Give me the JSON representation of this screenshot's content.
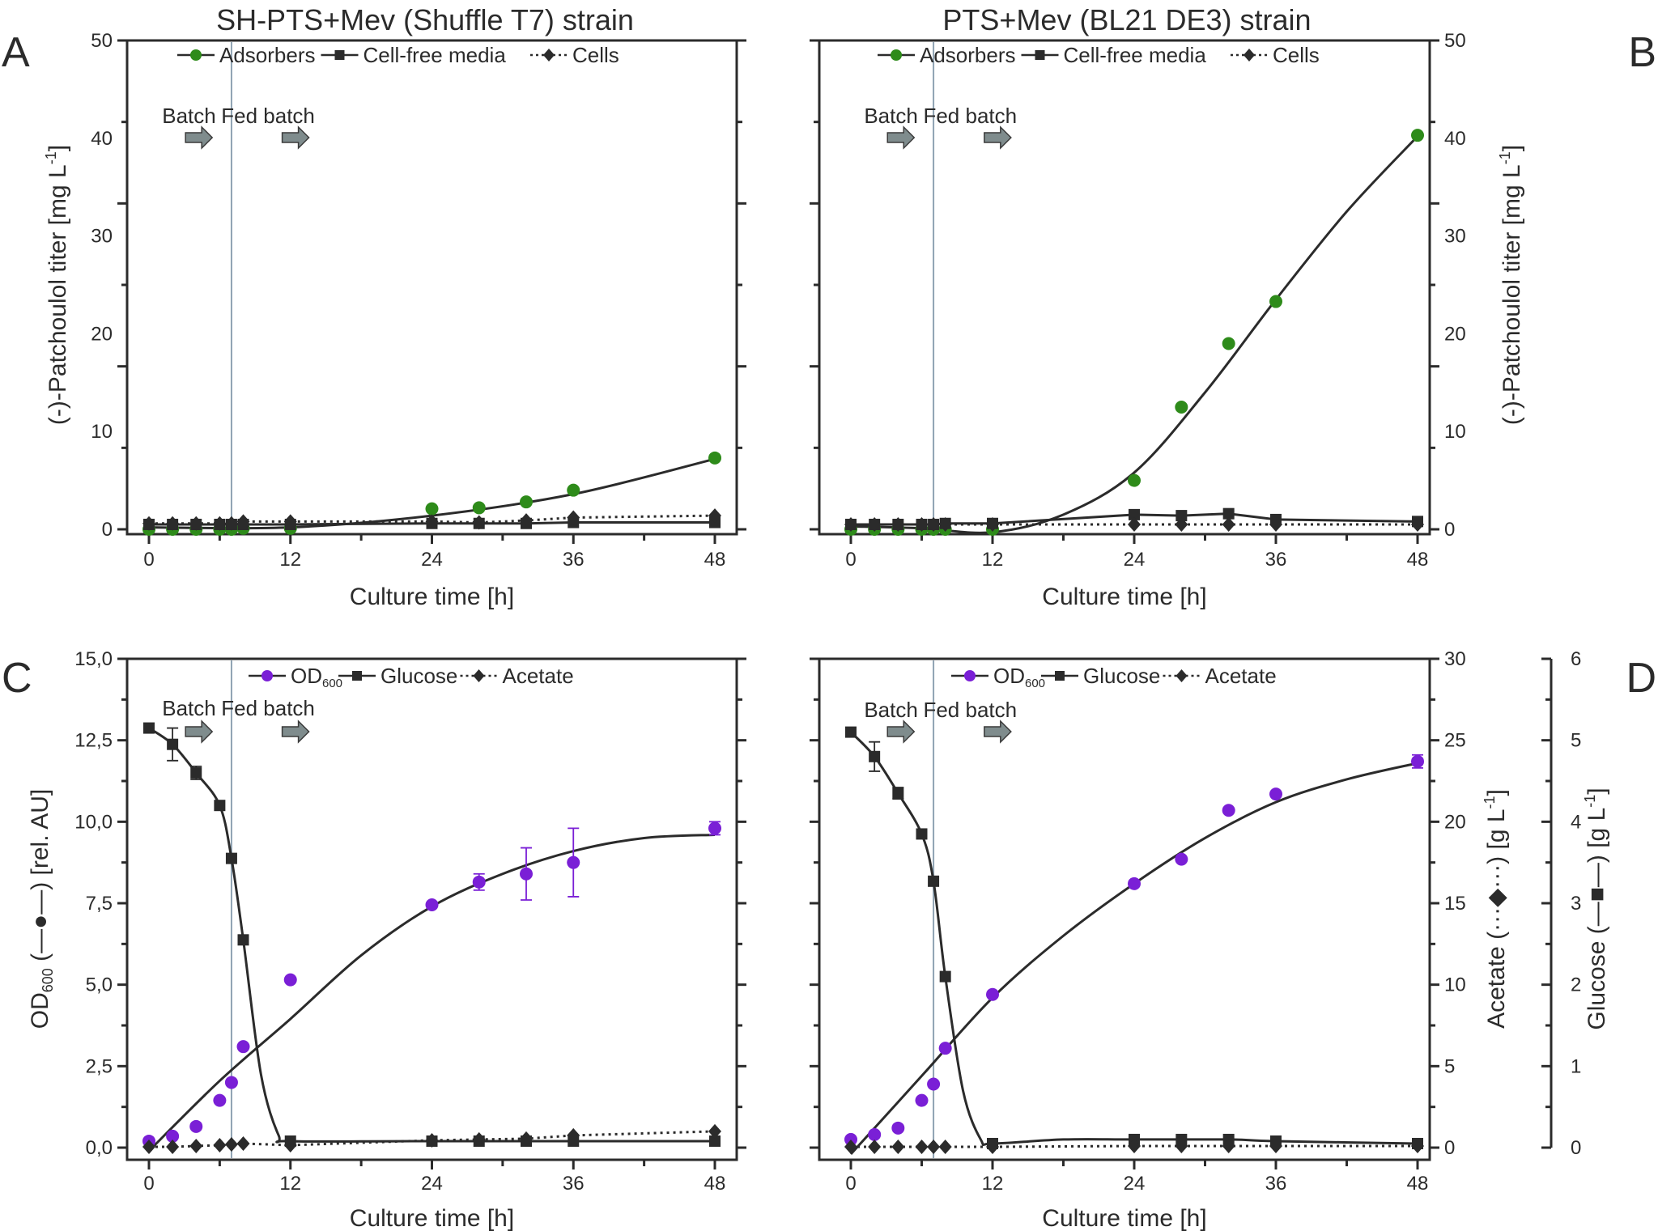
{
  "colors": {
    "adsorbers": "#2e8b1a",
    "od": "#7a1fd6",
    "black": "#2b2b2b",
    "phase_line": "#8fa3b3",
    "arrow": "#7f8c8d"
  },
  "chart_data": [
    {
      "type": "scatter",
      "panel_label": "A",
      "title": "SH-PTS+Mev (Shuffle T7) strain",
      "xlabel": "Culture time [h]",
      "ylabel": {
        "main": "(-)-Patchoulol titer [mg L",
        "sup": "-1",
        "end": "]"
      },
      "xlim": [
        0,
        48
      ],
      "ylim": [
        0,
        50
      ],
      "xticks": [
        "0",
        "12",
        "24",
        "36",
        "48"
      ],
      "yticks": [
        "0",
        "10",
        "20",
        "30",
        "40",
        "50"
      ],
      "phases": {
        "batch": "Batch",
        "fed_batch": "Fed batch",
        "switch_time": 7
      },
      "legend": [
        {
          "label": "Adsorbers",
          "marker": "circle",
          "color": "#2e8b1a",
          "dash": false
        },
        {
          "label": "Cell-free media",
          "marker": "square",
          "color": "#2b2b2b",
          "dash": false
        },
        {
          "label": "Cells",
          "marker": "diamond",
          "color": "#2b2b2b",
          "dash": true
        }
      ],
      "series": [
        {
          "name": "Adsorbers",
          "marker": "circle",
          "color": "#2e8b1a",
          "line": "fit",
          "x": [
            0,
            2,
            4,
            6,
            7,
            8,
            12,
            24,
            28,
            32,
            36,
            48
          ],
          "y": [
            0,
            0,
            0,
            0,
            0,
            0.1,
            0.1,
            2.1,
            2.2,
            2.8,
            4.0,
            7.3
          ],
          "fit": [
            [
              0,
              0.2
            ],
            [
              12,
              0.2
            ],
            [
              24,
              1.4
            ],
            [
              36,
              3.6
            ],
            [
              48,
              7.2
            ]
          ]
        },
        {
          "name": "Cell-free media",
          "marker": "square",
          "color": "#2b2b2b",
          "line": "solid",
          "x": [
            0,
            2,
            4,
            6,
            7,
            8,
            12,
            24,
            28,
            32,
            36,
            48
          ],
          "y": [
            0.5,
            0.5,
            0.5,
            0.5,
            0.5,
            0.5,
            0.5,
            0.6,
            0.6,
            0.6,
            0.7,
            0.7
          ]
        },
        {
          "name": "Cells",
          "marker": "diamond",
          "color": "#2b2b2b",
          "line": "dotted",
          "x": [
            0,
            2,
            4,
            6,
            7,
            8,
            12,
            24,
            28,
            32,
            36,
            48
          ],
          "y": [
            0.6,
            0.6,
            0.6,
            0.6,
            0.6,
            0.8,
            0.8,
            0.8,
            0.7,
            0.9,
            1.2,
            1.4
          ]
        }
      ]
    },
    {
      "type": "scatter",
      "panel_label": "B",
      "title": "PTS+Mev (BL21 DE3) strain",
      "xlabel": "Culture time [h]",
      "ylabel": {
        "main": "(-)-Patchoulol titer [mg L",
        "sup": "-1",
        "end": "]"
      },
      "xlim": [
        0,
        48
      ],
      "ylim": [
        0,
        50
      ],
      "xticks": [
        "0",
        "12",
        "24",
        "36",
        "48"
      ],
      "yticks": [
        "0",
        "10",
        "20",
        "30",
        "40",
        "50"
      ],
      "phases": {
        "batch": "Batch",
        "fed_batch": "Fed batch",
        "switch_time": 7
      },
      "legend": [
        {
          "label": "Adsorbers",
          "marker": "circle",
          "color": "#2e8b1a",
          "dash": false
        },
        {
          "label": "Cell-free media",
          "marker": "square",
          "color": "#2b2b2b",
          "dash": false
        },
        {
          "label": "Cells",
          "marker": "diamond",
          "color": "#2b2b2b",
          "dash": true
        }
      ],
      "series": [
        {
          "name": "Adsorbers",
          "marker": "circle",
          "color": "#2e8b1a",
          "line": "fit",
          "x": [
            0,
            2,
            4,
            6,
            7,
            8,
            12,
            24,
            28,
            32,
            36,
            48
          ],
          "y": [
            0,
            0,
            0,
            0,
            0,
            0,
            0,
            5.0,
            12.5,
            19.0,
            23.3,
            40.3
          ],
          "fit": [
            [
              0,
              0.3
            ],
            [
              6,
              0.1
            ],
            [
              12,
              -0.3
            ],
            [
              18,
              1.5
            ],
            [
              24,
              5.8
            ],
            [
              30,
              14
            ],
            [
              36,
              23.5
            ],
            [
              42,
              32.5
            ],
            [
              48,
              40.2
            ]
          ]
        },
        {
          "name": "Cell-free media",
          "marker": "square",
          "color": "#2b2b2b",
          "line": "solid",
          "x": [
            0,
            2,
            4,
            6,
            7,
            8,
            12,
            24,
            28,
            32,
            36,
            48
          ],
          "y": [
            0.5,
            0.5,
            0.5,
            0.5,
            0.5,
            0.6,
            0.6,
            1.5,
            1.4,
            1.6,
            1.0,
            0.8
          ]
        },
        {
          "name": "Cells",
          "marker": "diamond",
          "color": "#2b2b2b",
          "line": "dotted",
          "x": [
            0,
            2,
            4,
            6,
            7,
            8,
            12,
            24,
            28,
            32,
            36,
            48
          ],
          "y": [
            0.5,
            0.5,
            0.5,
            0.5,
            0.5,
            0.5,
            0.5,
            0.5,
            0.5,
            0.5,
            0.5,
            0.5
          ]
        }
      ]
    },
    {
      "type": "scatter",
      "panel_label": "C",
      "title": "",
      "xlabel": "Culture time [h]",
      "ylabel": {
        "main": "OD",
        "sub": "600",
        "end": " (—●—) [rel. AU]"
      },
      "xlim": [
        0,
        48
      ],
      "ylim": [
        0,
        15
      ],
      "acetate_lim": [
        0,
        30
      ],
      "glucose_lim": [
        0,
        6
      ],
      "xticks": [
        "0",
        "12",
        "24",
        "36",
        "48"
      ],
      "yticks": [
        "0,0",
        "2,5",
        "5,0",
        "7,5",
        "10,0",
        "12,5",
        "15,0"
      ],
      "phases": {
        "batch": "Batch",
        "fed_batch": "Fed batch",
        "switch_time": 7
      },
      "legend": [
        {
          "label": "OD",
          "sub": "600",
          "marker": "circle",
          "color": "#7a1fd6",
          "dash": false
        },
        {
          "label": "Glucose",
          "marker": "square",
          "color": "#2b2b2b",
          "dash": false
        },
        {
          "label": "Acetate",
          "marker": "diamond",
          "color": "#2b2b2b",
          "dash": true
        }
      ],
      "series": [
        {
          "name": "OD600",
          "axis": "od",
          "marker": "circle",
          "color": "#7a1fd6",
          "line": "fit",
          "x": [
            0,
            2,
            4,
            6,
            7,
            8,
            12,
            24,
            28,
            32,
            36,
            48
          ],
          "y": [
            0.2,
            0.35,
            0.65,
            1.45,
            2.0,
            3.1,
            5.15,
            7.45,
            8.15,
            8.4,
            8.75,
            9.8
          ],
          "err": [
            0,
            0,
            0,
            0,
            0,
            0,
            0,
            0,
            0.25,
            0.8,
            1.05,
            0.2
          ],
          "fit": [
            [
              0,
              -0.1
            ],
            [
              6,
              2.05
            ],
            [
              12,
              3.95
            ],
            [
              18,
              5.9
            ],
            [
              24,
              7.4
            ],
            [
              30,
              8.4
            ],
            [
              36,
              9.1
            ],
            [
              42,
              9.5
            ],
            [
              48,
              9.6
            ]
          ]
        },
        {
          "name": "Glucose",
          "axis": "glucose",
          "marker": "square",
          "color": "#2b2b2b",
          "line": "smooth",
          "x": [
            0,
            2,
            4,
            6,
            7,
            8,
            12,
            24,
            28,
            32,
            36,
            48
          ],
          "y": [
            5.15,
            4.95,
            4.6,
            4.2,
            3.55,
            2.55,
            0.08,
            0.08,
            0.08,
            0.08,
            0.08,
            0.08
          ],
          "err": [
            0,
            0.2,
            0.08,
            0,
            0,
            0,
            0,
            0,
            0,
            0,
            0,
            0
          ],
          "fit": [
            [
              0,
              5.15
            ],
            [
              2,
              4.95
            ],
            [
              4,
              4.6
            ],
            [
              6,
              4.2
            ],
            [
              7,
              3.55
            ],
            [
              8,
              2.55
            ],
            [
              9.5,
              0.9
            ],
            [
              11,
              0.15
            ],
            [
              12,
              0.08
            ],
            [
              24,
              0.08
            ],
            [
              48,
              0.08
            ]
          ]
        },
        {
          "name": "Acetate",
          "axis": "acetate",
          "marker": "diamond",
          "color": "#2b2b2b",
          "line": "dotted",
          "x": [
            0,
            2,
            4,
            6,
            7,
            8,
            12,
            24,
            28,
            32,
            36,
            48
          ],
          "y": [
            0.05,
            0.05,
            0.1,
            0.15,
            0.2,
            0.25,
            0.15,
            0.45,
            0.5,
            0.55,
            0.75,
            1.0
          ]
        }
      ]
    },
    {
      "type": "scatter",
      "panel_label": "D",
      "title": "",
      "xlabel": "Culture time [h]",
      "ylabel_acetate": {
        "main": "Acetate (···◆···) [g L",
        "sup": "-1",
        "end": "]"
      },
      "ylabel_glucose": {
        "main": "Glucose (—■—) [g L",
        "sup": "-1",
        "end": "]"
      },
      "xlim": [
        0,
        48
      ],
      "ylim": [
        0,
        15
      ],
      "acetate_lim": [
        0,
        30
      ],
      "glucose_lim": [
        0,
        6
      ],
      "xticks": [
        "0",
        "12",
        "24",
        "36",
        "48"
      ],
      "acetate_ticks": [
        "0",
        "5",
        "10",
        "15",
        "20",
        "25",
        "30"
      ],
      "glucose_ticks": [
        "0",
        "1",
        "2",
        "3",
        "4",
        "5",
        "6"
      ],
      "phases": {
        "batch": "Batch",
        "fed_batch": "Fed batch",
        "switch_time": 7
      },
      "legend": [
        {
          "label": "OD",
          "sub": "600",
          "marker": "circle",
          "color": "#7a1fd6",
          "dash": false
        },
        {
          "label": "Glucose",
          "marker": "square",
          "color": "#2b2b2b",
          "dash": false
        },
        {
          "label": "Acetate",
          "marker": "diamond",
          "color": "#2b2b2b",
          "dash": true
        }
      ],
      "series": [
        {
          "name": "OD600",
          "axis": "od",
          "marker": "circle",
          "color": "#7a1fd6",
          "line": "fit",
          "x": [
            0,
            2,
            4,
            6,
            7,
            8,
            12,
            24,
            28,
            32,
            36,
            48
          ],
          "y": [
            0.25,
            0.4,
            0.6,
            1.45,
            1.95,
            3.05,
            4.7,
            8.1,
            8.85,
            10.35,
            10.85,
            11.85
          ],
          "err": [
            0,
            0,
            0,
            0,
            0,
            0,
            0,
            0,
            0,
            0,
            0,
            0.2
          ],
          "fit": [
            [
              0,
              -0.2
            ],
            [
              6,
              2.2
            ],
            [
              12,
              4.6
            ],
            [
              18,
              6.5
            ],
            [
              24,
              8.1
            ],
            [
              30,
              9.5
            ],
            [
              36,
              10.6
            ],
            [
              42,
              11.3
            ],
            [
              48,
              11.8
            ]
          ]
        },
        {
          "name": "Glucose",
          "axis": "glucose",
          "marker": "square",
          "color": "#2b2b2b",
          "line": "smooth",
          "x": [
            0,
            2,
            4,
            6,
            7,
            8,
            12,
            24,
            28,
            32,
            36,
            48
          ],
          "y": [
            5.1,
            4.8,
            4.35,
            3.85,
            3.27,
            2.1,
            0.05,
            0.1,
            0.1,
            0.1,
            0.08,
            0.05
          ],
          "err": [
            0,
            0.18,
            0.07,
            0,
            0,
            0,
            0,
            0,
            0,
            0,
            0,
            0
          ],
          "fit": [
            [
              0,
              5.1
            ],
            [
              2,
              4.8
            ],
            [
              4,
              4.35
            ],
            [
              6,
              3.85
            ],
            [
              7,
              3.27
            ],
            [
              8,
              2.1
            ],
            [
              9.5,
              0.7
            ],
            [
              11,
              0.1
            ],
            [
              12,
              0.05
            ],
            [
              18,
              0.1
            ],
            [
              24,
              0.1
            ],
            [
              32,
              0.1
            ],
            [
              36,
              0.08
            ],
            [
              48,
              0.05
            ]
          ]
        },
        {
          "name": "Acetate",
          "axis": "acetate",
          "marker": "diamond",
          "color": "#2b2b2b",
          "line": "dotted",
          "x": [
            0,
            2,
            4,
            6,
            7,
            8,
            12,
            24,
            28,
            32,
            36,
            48
          ],
          "y": [
            0.05,
            0.05,
            0.05,
            0.05,
            0.05,
            0.05,
            0.05,
            0.1,
            0.1,
            0.1,
            0.1,
            0.1
          ]
        }
      ]
    }
  ]
}
